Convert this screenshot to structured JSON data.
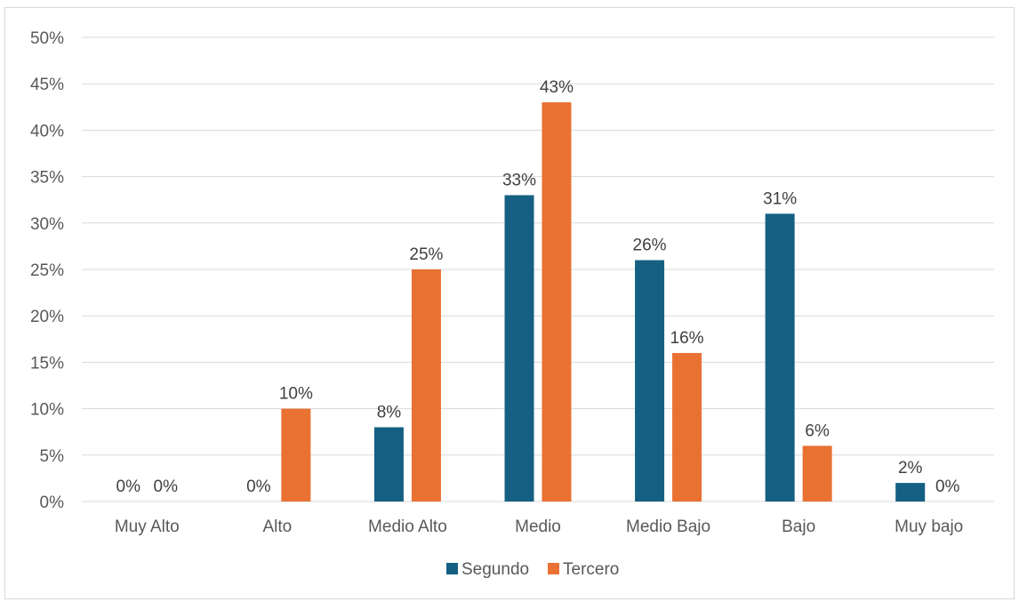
{
  "chart_data": {
    "type": "bar",
    "categories": [
      "Muy Alto",
      "Alto",
      "Medio Alto",
      "Medio",
      "Medio Bajo",
      "Bajo",
      "Muy bajo"
    ],
    "series": [
      {
        "name": "Segundo",
        "color": "#156082",
        "values": [
          0,
          0,
          8,
          33,
          26,
          31,
          2
        ],
        "labels": [
          "0%",
          "0%",
          "8%",
          "33%",
          "26%",
          "31%",
          "2%"
        ]
      },
      {
        "name": "Tercero",
        "color": "#E97132",
        "values": [
          0,
          10,
          25,
          43,
          16,
          6,
          0
        ],
        "labels": [
          "0%",
          "10%",
          "25%",
          "43%",
          "16%",
          "6%",
          "0%"
        ]
      }
    ],
    "ylim": [
      0,
      50
    ],
    "yticks": [
      "0%",
      "5%",
      "10%",
      "15%",
      "20%",
      "25%",
      "30%",
      "35%",
      "40%",
      "45%",
      "50%"
    ],
    "grid": true,
    "legend_position": "bottom"
  }
}
